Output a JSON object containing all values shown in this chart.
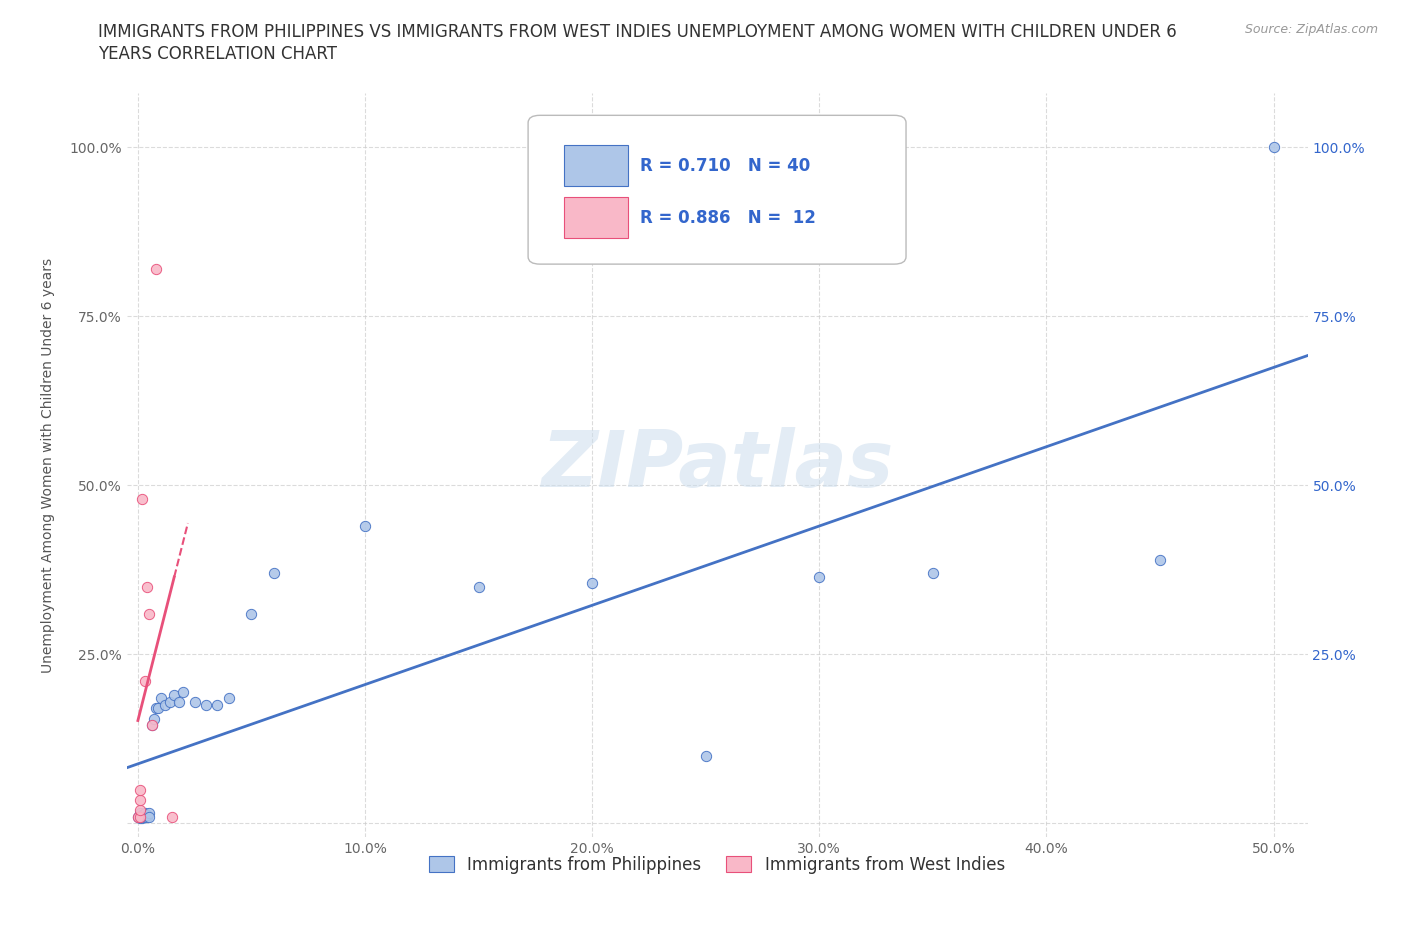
{
  "title_line1": "IMMIGRANTS FROM PHILIPPINES VS IMMIGRANTS FROM WEST INDIES UNEMPLOYMENT AMONG WOMEN WITH CHILDREN UNDER 6",
  "title_line2": "YEARS CORRELATION CHART",
  "source": "Source: ZipAtlas.com",
  "ylabel": "Unemployment Among Women with Children Under 6 years",
  "background_color": "#ffffff",
  "grid_color": "#cccccc",
  "watermark": "ZIPatlas",
  "philippines_scatter_x": [
    0.0,
    0.001,
    0.001,
    0.001,
    0.001,
    0.002,
    0.002,
    0.002,
    0.002,
    0.003,
    0.003,
    0.003,
    0.004,
    0.004,
    0.005,
    0.005,
    0.006,
    0.007,
    0.008,
    0.009,
    0.01,
    0.012,
    0.014,
    0.016,
    0.018,
    0.02,
    0.025,
    0.03,
    0.035,
    0.04,
    0.05,
    0.06,
    0.1,
    0.15,
    0.2,
    0.25,
    0.3,
    0.35,
    0.45,
    0.5
  ],
  "philippines_scatter_y": [
    0.01,
    0.008,
    0.01,
    0.012,
    0.015,
    0.01,
    0.012,
    0.008,
    0.01,
    0.01,
    0.012,
    0.015,
    0.01,
    0.012,
    0.015,
    0.01,
    0.145,
    0.155,
    0.17,
    0.17,
    0.185,
    0.175,
    0.18,
    0.19,
    0.18,
    0.195,
    0.18,
    0.175,
    0.175,
    0.185,
    0.31,
    0.37,
    0.44,
    0.35,
    0.355,
    0.1,
    0.365,
    0.37,
    0.39,
    1.0
  ],
  "west_indies_scatter_x": [
    0.0,
    0.001,
    0.001,
    0.001,
    0.001,
    0.002,
    0.003,
    0.004,
    0.005,
    0.006,
    0.008,
    0.015
  ],
  "west_indies_scatter_y": [
    0.01,
    0.01,
    0.02,
    0.035,
    0.05,
    0.48,
    0.21,
    0.35,
    0.31,
    0.145,
    0.82,
    0.01
  ],
  "philippines_color": "#aec6e8",
  "west_indies_color": "#f9b8c8",
  "philippines_line_color": "#4472c4",
  "west_indies_line_color": "#e8507a",
  "R_philippines": 0.71,
  "N_philippines": 40,
  "R_west_indies": 0.886,
  "N_west_indies": 12,
  "xlim": [
    -0.005,
    0.515
  ],
  "ylim": [
    -0.02,
    1.08
  ],
  "xtick_values": [
    0.0,
    0.1,
    0.2,
    0.3,
    0.4,
    0.5
  ],
  "xtick_labels": [
    "0.0%",
    "10.0%",
    "20.0%",
    "30.0%",
    "40.0%",
    "50.0%"
  ],
  "ytick_left_values": [
    0.0,
    0.25,
    0.5,
    0.75,
    1.0
  ],
  "ytick_left_labels": [
    "",
    "25.0%",
    "50.0%",
    "75.0%",
    "100.0%"
  ],
  "ytick_right_values": [
    0.0,
    0.25,
    0.5,
    0.75,
    1.0
  ],
  "ytick_right_labels": [
    "",
    "25.0%",
    "50.0%",
    "75.0%",
    "100.0%"
  ],
  "legend_label_philippines": "Immigrants from Philippines",
  "legend_label_west_indies": "Immigrants from West Indies",
  "legend_text_color": "#3366cc",
  "marker_size": 55,
  "title_fontsize": 12,
  "axis_label_fontsize": 10,
  "tick_fontsize": 10,
  "legend_fontsize": 12
}
